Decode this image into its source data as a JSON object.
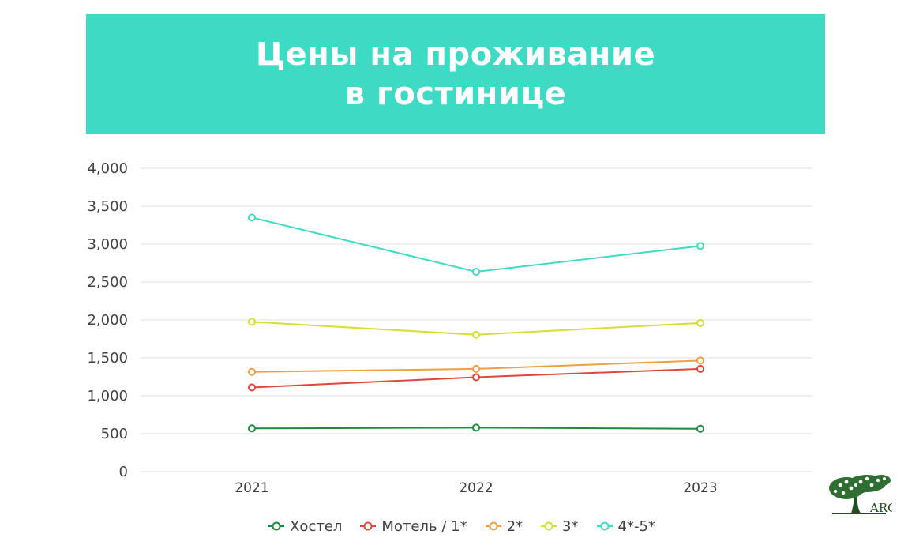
{
  "title": {
    "line1": "Цены на проживание",
    "line2": "в гостинице"
  },
  "colors": {
    "banner": "#3ddbc3",
    "grid": "#e0e0e0",
    "logo": "#1e4d20"
  },
  "logo": {
    "text": "ARG",
    "icon": "tree-icon"
  },
  "chart_data": {
    "type": "line",
    "categories": [
      "2021",
      "2022",
      "2023"
    ],
    "ylim": [
      0,
      4000
    ],
    "yticks": [
      "0",
      "500",
      "1,000",
      "1,500",
      "2,000",
      "2,500",
      "3,000",
      "3,500",
      "4,000"
    ],
    "ytick_values": [
      0,
      500,
      1000,
      1500,
      2000,
      2500,
      3000,
      3500,
      4000
    ],
    "grid": true,
    "legend": "bottom",
    "series": [
      {
        "name": "Хостел",
        "color": "#1e8a3c",
        "values": [
          570,
          580,
          565
        ]
      },
      {
        "name": "Мотель / 1*",
        "color": "#e0463a",
        "values": [
          1110,
          1245,
          1355
        ]
      },
      {
        "name": "2*",
        "color": "#f0a040",
        "values": [
          1315,
          1355,
          1465
        ]
      },
      {
        "name": "3*",
        "color": "#d7dc36",
        "values": [
          1975,
          1805,
          1960
        ]
      },
      {
        "name": "4*-5*",
        "color": "#3ddbc3",
        "values": [
          3350,
          2635,
          2975
        ]
      }
    ]
  }
}
